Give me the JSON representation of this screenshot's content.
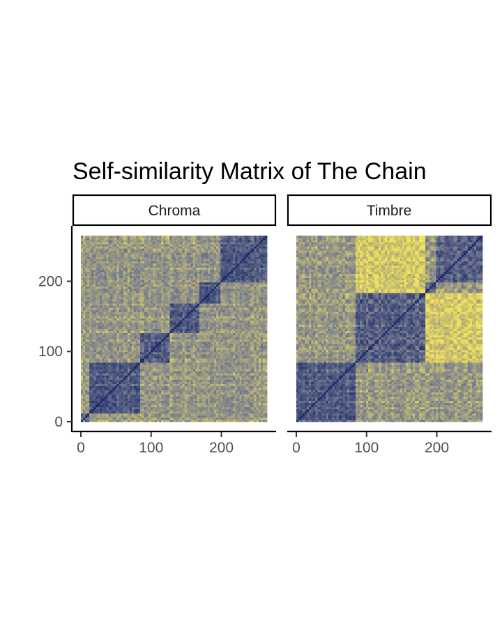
{
  "chart_data": {
    "type": "heatmap",
    "title": "Self-similarity Matrix of The Chain",
    "xlabel": "",
    "ylabel": "",
    "n_frames": 265,
    "xlim": [
      0,
      265
    ],
    "ylim": [
      0,
      265
    ],
    "x_ticks": [
      "0",
      "100",
      "200"
    ],
    "y_ticks": [
      "0",
      "100",
      "200"
    ],
    "palette": {
      "low": "#16266b",
      "mid": "#7d8290",
      "high": "#f2e25c"
    },
    "grid": false,
    "legend": "none",
    "panels": [
      {
        "name": "Chroma",
        "segments": [
          0,
          12,
          85,
          125,
          170,
          200,
          265
        ]
      },
      {
        "name": "Timbre",
        "segments": [
          0,
          85,
          185,
          200,
          265
        ]
      }
    ]
  }
}
